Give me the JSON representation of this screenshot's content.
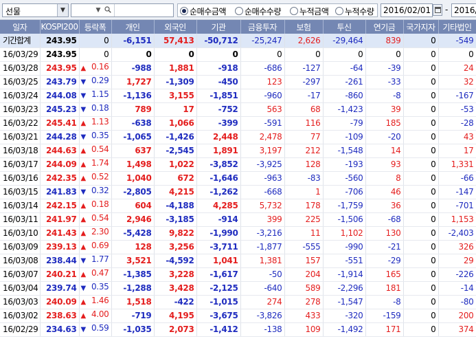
{
  "toolbar": {
    "product": "선물",
    "search_value": "",
    "radios": [
      {
        "label": "순매수금액",
        "selected": true
      },
      {
        "label": "순매수수량",
        "selected": false
      },
      {
        "label": "누적금액",
        "selected": false
      },
      {
        "label": "누적수량",
        "selected": false
      }
    ],
    "start_date": "2016/02/01",
    "end_date": "2016/"
  },
  "grid": {
    "headers": [
      "일자",
      "KOSPI200",
      "등락폭",
      "개인",
      "외국인",
      "기관",
      "금융투자",
      "보험",
      "투신",
      "연기금",
      "국가지자",
      "기타법인"
    ],
    "rows": [
      {
        "date": "기간합계",
        "kospi": "243.95",
        "chg": "0",
        "dir": "",
        "ind": "-6,151",
        "frn": "57,413",
        "ins": "-50,712",
        "fin": "-25,247",
        "insu": "2,626",
        "inv": "-29,464",
        "pen": "839",
        "gov": "0",
        "etc": "-549"
      },
      {
        "date": "16/03/29",
        "kospi": "243.95",
        "chg": "0",
        "dir": "",
        "ind": "0",
        "frn": "0",
        "ins": "0",
        "fin": "0",
        "insu": "0",
        "inv": "0",
        "pen": "0",
        "gov": "0",
        "etc": "0"
      },
      {
        "date": "16/03/28",
        "kospi": "243.95",
        "chg": "0.16",
        "dir": "up",
        "ind": "-988",
        "frn": "1,881",
        "ins": "-918",
        "fin": "-686",
        "insu": "-127",
        "inv": "-64",
        "pen": "-39",
        "gov": "0",
        "etc": "24"
      },
      {
        "date": "16/03/25",
        "kospi": "243.79",
        "chg": "0.29",
        "dir": "down",
        "ind": "1,727",
        "frn": "-1,309",
        "ins": "-450",
        "fin": "123",
        "insu": "-297",
        "inv": "-261",
        "pen": "-33",
        "gov": "0",
        "etc": "32"
      },
      {
        "date": "16/03/24",
        "kospi": "244.08",
        "chg": "1.15",
        "dir": "down",
        "ind": "-1,136",
        "frn": "3,155",
        "ins": "-1,851",
        "fin": "-960",
        "insu": "-17",
        "inv": "-860",
        "pen": "-8",
        "gov": "0",
        "etc": "-167"
      },
      {
        "date": "16/03/23",
        "kospi": "245.23",
        "chg": "0.18",
        "dir": "down",
        "ind": "789",
        "frn": "17",
        "ins": "-752",
        "fin": "563",
        "insu": "68",
        "inv": "-1,423",
        "pen": "39",
        "gov": "0",
        "etc": "-53"
      },
      {
        "date": "16/03/22",
        "kospi": "245.41",
        "chg": "1.13",
        "dir": "up",
        "ind": "-638",
        "frn": "1,066",
        "ins": "-399",
        "fin": "-591",
        "insu": "116",
        "inv": "-79",
        "pen": "185",
        "gov": "0",
        "etc": "-28"
      },
      {
        "date": "16/03/21",
        "kospi": "244.28",
        "chg": "0.35",
        "dir": "down",
        "ind": "-1,065",
        "frn": "-1,426",
        "ins": "2,448",
        "fin": "2,478",
        "insu": "77",
        "inv": "-109",
        "pen": "-20",
        "gov": "0",
        "etc": "43"
      },
      {
        "date": "16/03/18",
        "kospi": "244.63",
        "chg": "0.54",
        "dir": "up",
        "ind": "637",
        "frn": "-2,545",
        "ins": "1,891",
        "fin": "3,197",
        "insu": "212",
        "inv": "-1,548",
        "pen": "14",
        "gov": "0",
        "etc": "17"
      },
      {
        "date": "16/03/17",
        "kospi": "244.09",
        "chg": "1.74",
        "dir": "up",
        "ind": "1,498",
        "frn": "1,022",
        "ins": "-3,852",
        "fin": "-3,925",
        "insu": "128",
        "inv": "-193",
        "pen": "93",
        "gov": "0",
        "etc": "1,331"
      },
      {
        "date": "16/03/16",
        "kospi": "242.35",
        "chg": "0.52",
        "dir": "up",
        "ind": "1,040",
        "frn": "672",
        "ins": "-1,646",
        "fin": "-963",
        "insu": "-83",
        "inv": "-560",
        "pen": "8",
        "gov": "0",
        "etc": "-66"
      },
      {
        "date": "16/03/15",
        "kospi": "241.83",
        "chg": "0.32",
        "dir": "down",
        "ind": "-2,805",
        "frn": "4,215",
        "ins": "-1,262",
        "fin": "-668",
        "insu": "1",
        "inv": "-706",
        "pen": "46",
        "gov": "0",
        "etc": "-147"
      },
      {
        "date": "16/03/14",
        "kospi": "242.15",
        "chg": "0.18",
        "dir": "up",
        "ind": "604",
        "frn": "-4,188",
        "ins": "4,285",
        "fin": "5,732",
        "insu": "178",
        "inv": "-1,759",
        "pen": "36",
        "gov": "0",
        "etc": "-701"
      },
      {
        "date": "16/03/11",
        "kospi": "241.97",
        "chg": "0.54",
        "dir": "up",
        "ind": "2,946",
        "frn": "-3,185",
        "ins": "-914",
        "fin": "399",
        "insu": "225",
        "inv": "-1,506",
        "pen": "-68",
        "gov": "0",
        "etc": "1,153"
      },
      {
        "date": "16/03/10",
        "kospi": "241.43",
        "chg": "2.30",
        "dir": "up",
        "ind": "-5,428",
        "frn": "9,822",
        "ins": "-1,990",
        "fin": "-3,216",
        "insu": "11",
        "inv": "1,102",
        "pen": "130",
        "gov": "0",
        "etc": "-2,403"
      },
      {
        "date": "16/03/09",
        "kospi": "239.13",
        "chg": "0.69",
        "dir": "up",
        "ind": "128",
        "frn": "3,256",
        "ins": "-3,711",
        "fin": "-1,877",
        "insu": "-555",
        "inv": "-990",
        "pen": "-21",
        "gov": "0",
        "etc": "326"
      },
      {
        "date": "16/03/08",
        "kospi": "238.44",
        "chg": "1.77",
        "dir": "down",
        "ind": "3,521",
        "frn": "-4,592",
        "ins": "1,041",
        "fin": "1,381",
        "insu": "157",
        "inv": "-551",
        "pen": "-29",
        "gov": "0",
        "etc": "29"
      },
      {
        "date": "16/03/07",
        "kospi": "240.21",
        "chg": "0.47",
        "dir": "up",
        "ind": "-1,385",
        "frn": "3,228",
        "ins": "-1,617",
        "fin": "-50",
        "insu": "204",
        "inv": "-1,914",
        "pen": "165",
        "gov": "0",
        "etc": "-226"
      },
      {
        "date": "16/03/04",
        "kospi": "239.74",
        "chg": "0.35",
        "dir": "down",
        "ind": "-1,288",
        "frn": "3,428",
        "ins": "-2,125",
        "fin": "-640",
        "insu": "589",
        "inv": "-2,296",
        "pen": "181",
        "gov": "0",
        "etc": "-14"
      },
      {
        "date": "16/03/03",
        "kospi": "240.09",
        "chg": "1.46",
        "dir": "up",
        "ind": "1,518",
        "frn": "-422",
        "ins": "-1,015",
        "fin": "274",
        "insu": "278",
        "inv": "-1,547",
        "pen": "-8",
        "gov": "0",
        "etc": "-80"
      },
      {
        "date": "16/03/02",
        "kospi": "238.63",
        "chg": "4.00",
        "dir": "up",
        "ind": "-719",
        "frn": "4,195",
        "ins": "-3,675",
        "fin": "-3,826",
        "insu": "433",
        "inv": "-320",
        "pen": "-159",
        "gov": "0",
        "etc": "200"
      },
      {
        "date": "16/02/29",
        "kospi": "234.63",
        "chg": "0.59",
        "dir": "down",
        "ind": "-1,035",
        "frn": "2,073",
        "ins": "-1,412",
        "fin": "-138",
        "insu": "109",
        "inv": "-1,492",
        "pen": "171",
        "gov": "0",
        "etc": "374"
      }
    ]
  }
}
